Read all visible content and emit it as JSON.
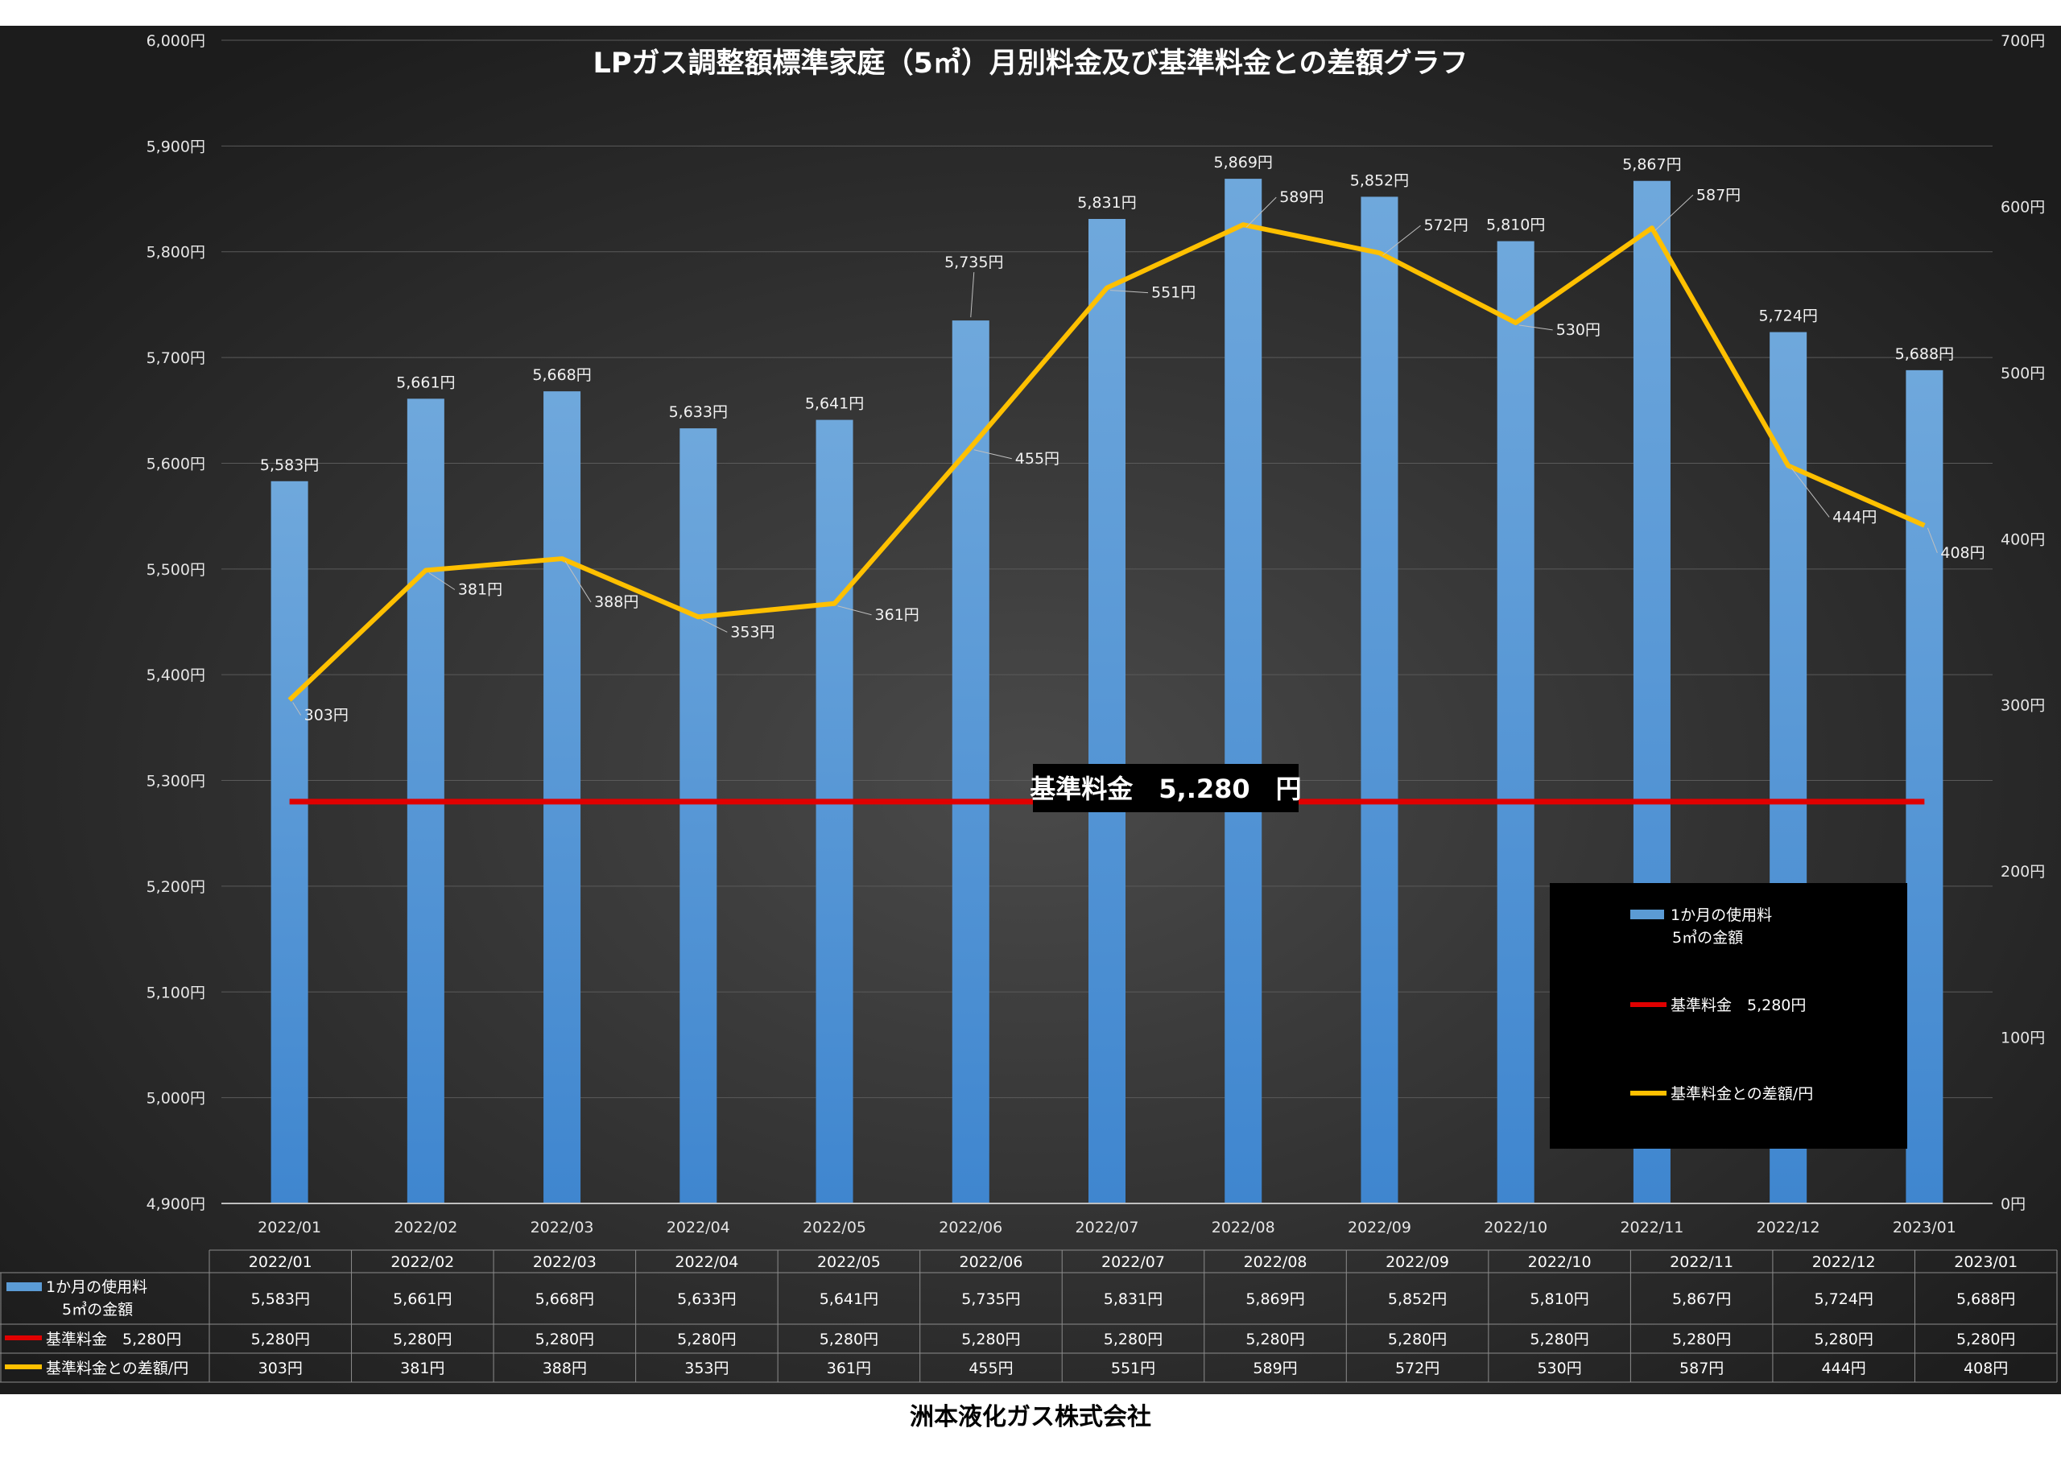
{
  "chart_data": {
    "type": "bar",
    "title": "LPガス調整額標準家庭（5㎥）月別料金及び基準料金との差額グラフ",
    "categories": [
      "2022/01",
      "2022/02",
      "2022/03",
      "2022/04",
      "2022/05",
      "2022/06",
      "2022/07",
      "2022/08",
      "2022/09",
      "2022/10",
      "2022/11",
      "2022/12",
      "2023/01"
    ],
    "series": [
      {
        "name": "1か月の使用料\n5㎥の金額",
        "type": "bar",
        "axis": "left",
        "color": "#5b9bd5",
        "values": [
          5583,
          5661,
          5668,
          5633,
          5641,
          5735,
          5831,
          5869,
          5852,
          5810,
          5867,
          5724,
          5688
        ],
        "labels": [
          "5,583円",
          "5,661円",
          "5,668円",
          "5,633円",
          "5,641円",
          "5,735円",
          "5,831円",
          "5,869円",
          "5,852円",
          "5,810円",
          "5,867円",
          "5,724円",
          "5,688円"
        ]
      },
      {
        "name": "基準料金　5,280円",
        "type": "line",
        "axis": "left",
        "color": "#e00000",
        "values": [
          5280,
          5280,
          5280,
          5280,
          5280,
          5280,
          5280,
          5280,
          5280,
          5280,
          5280,
          5280,
          5280
        ],
        "labels": [
          "5,280円",
          "5,280円",
          "5,280円",
          "5,280円",
          "5,280円",
          "5,280円",
          "5,280円",
          "5,280円",
          "5,280円",
          "5,280円",
          "5,280円",
          "5,280円",
          "5,280円"
        ]
      },
      {
        "name": "基準料金との差額/円",
        "type": "line",
        "axis": "right",
        "color": "#ffc000",
        "values": [
          303,
          381,
          388,
          353,
          361,
          455,
          551,
          589,
          572,
          530,
          587,
          444,
          408
        ],
        "labels": [
          "303円",
          "381円",
          "388円",
          "353円",
          "361円",
          "455円",
          "551円",
          "589円",
          "572円",
          "530円",
          "587円",
          "444円",
          "408円"
        ]
      }
    ],
    "ylim": [
      4900,
      6000
    ],
    "y2lim": [
      0,
      700
    ],
    "y_ticks": [
      "4,900円",
      "5,000円",
      "5,100円",
      "5,200円",
      "5,300円",
      "5,400円",
      "5,500円",
      "5,600円",
      "5,700円",
      "5,800円",
      "5,900円",
      "6,000円"
    ],
    "y2_ticks": [
      "0円",
      "100円",
      "200円",
      "300円",
      "400円",
      "500円",
      "600円",
      "700円"
    ],
    "grid": true,
    "legend_position": "bottom-right",
    "annotation": "基準料金　5,.280　円",
    "data_table": true
  },
  "footer": "洲本液化ガス株式会社"
}
